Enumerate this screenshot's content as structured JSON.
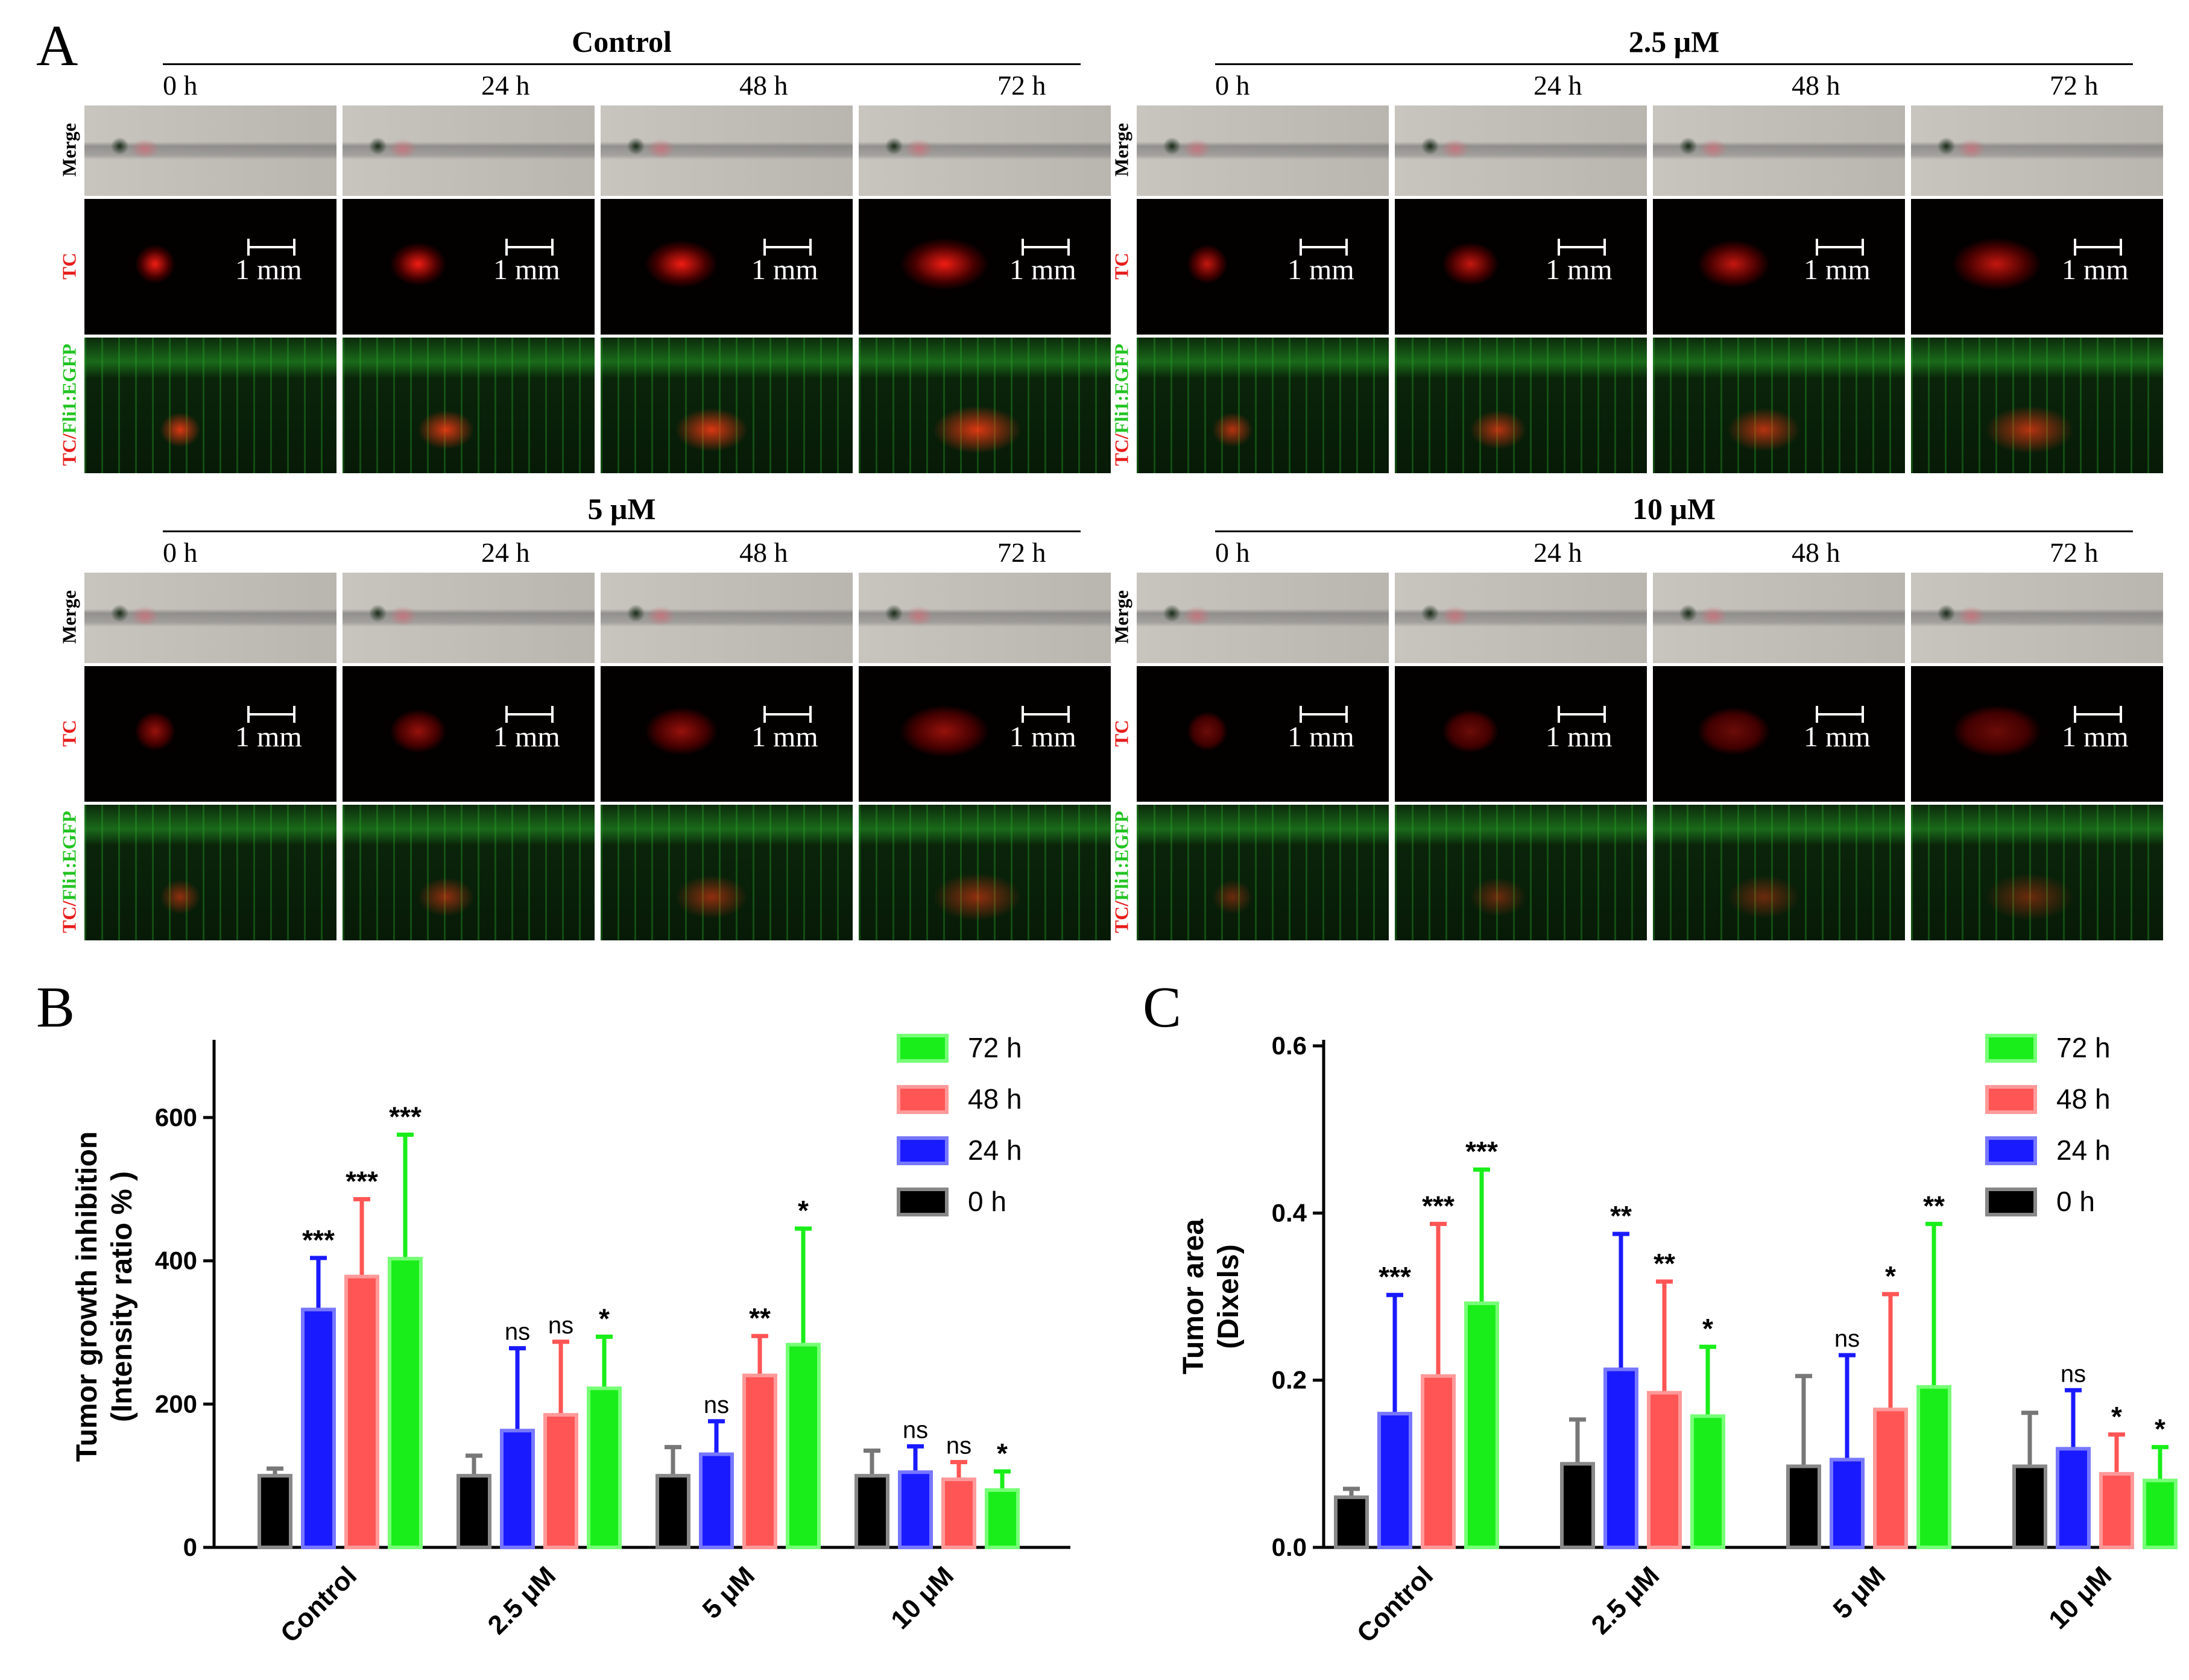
{
  "panel_a": {
    "letter": "A",
    "groups": [
      {
        "title": "Control"
      },
      {
        "title": "2.5 μM"
      },
      {
        "title": "5 μM"
      },
      {
        "title": "10 μM"
      }
    ],
    "timepoints": [
      "0 h",
      "24 h",
      "48 h",
      "72 h"
    ],
    "row_labels": {
      "merge": "Merge",
      "tc": "TC",
      "egfp_a": "TC/",
      "egfp_b": "Fli1:EGFP"
    },
    "scale_bar": "1 mm"
  },
  "chart_data": [
    {
      "panel": "B",
      "type": "bar",
      "ylabel": "Tumor growth inhibition\n(Intensity ratio % )",
      "ylabel_line1": "Tumor growth inhibition",
      "ylabel_line2": "(Intensity ratio % )",
      "ylim": [
        0,
        700
      ],
      "yticks": [
        0,
        200,
        400,
        600
      ],
      "categories": [
        "Control",
        "2.5 μM",
        "5 μM",
        "10 μM"
      ],
      "legend": [
        "72 h",
        "48 h",
        "24 h",
        "0 h"
      ],
      "series": [
        {
          "name": "0 h",
          "color": "#000000",
          "values": [
            100,
            100,
            100,
            100
          ],
          "errors": [
            10,
            28,
            40,
            35
          ],
          "sig": [
            "",
            "",
            "",
            ""
          ]
        },
        {
          "name": "24 h",
          "color": "#1a1aff",
          "values": [
            332,
            163,
            130,
            105
          ],
          "errors": [
            72,
            115,
            46,
            36
          ],
          "sig": [
            "***",
            "ns",
            "ns",
            "ns"
          ]
        },
        {
          "name": "48 h",
          "color": "#ff5555",
          "values": [
            378,
            185,
            240,
            95
          ],
          "errors": [
            108,
            102,
            55,
            24
          ],
          "sig": [
            "***",
            "ns",
            "**",
            "ns"
          ]
        },
        {
          "name": "72 h",
          "color": "#1aee1a",
          "values": [
            403,
            222,
            283,
            80
          ],
          "errors": [
            173,
            72,
            162,
            26
          ],
          "sig": [
            "***",
            "*",
            "*",
            "*"
          ]
        }
      ]
    },
    {
      "panel": "C",
      "type": "bar",
      "ylabel_line1": "Tumor area",
      "ylabel_line2": "(Dixels)",
      "ylim": [
        0,
        0.6
      ],
      "yticks": [
        "0.0",
        "0.2",
        "0.4",
        "0.6"
      ],
      "categories": [
        "Control",
        "2.5 μM",
        "5 μM",
        "10 μM"
      ],
      "legend": [
        "72 h",
        "48 h",
        "24 h",
        "0 h"
      ],
      "series": [
        {
          "name": "0 h",
          "color": "#000000",
          "values": [
            0.06,
            0.1,
            0.097,
            0.097
          ],
          "errors": [
            0.01,
            0.053,
            0.108,
            0.064
          ],
          "sig": [
            "",
            "",
            "",
            ""
          ]
        },
        {
          "name": "24 h",
          "color": "#1a1aff",
          "values": [
            0.16,
            0.213,
            0.105,
            0.118
          ],
          "errors": [
            0.142,
            0.162,
            0.125,
            0.07
          ],
          "sig": [
            "***",
            "**",
            "ns",
            "ns"
          ]
        },
        {
          "name": "48 h",
          "color": "#ff5555",
          "values": [
            0.205,
            0.185,
            0.165,
            0.088
          ],
          "errors": [
            0.182,
            0.133,
            0.138,
            0.047
          ],
          "sig": [
            "***",
            "**",
            "*",
            "*"
          ]
        },
        {
          "name": "72 h",
          "color": "#1aee1a",
          "values": [
            0.292,
            0.157,
            0.192,
            0.08
          ],
          "errors": [
            0.16,
            0.083,
            0.195,
            0.04
          ],
          "sig": [
            "***",
            "*",
            "**",
            "*"
          ]
        }
      ]
    }
  ],
  "panel_letters": {
    "b": "B",
    "c": "C"
  }
}
